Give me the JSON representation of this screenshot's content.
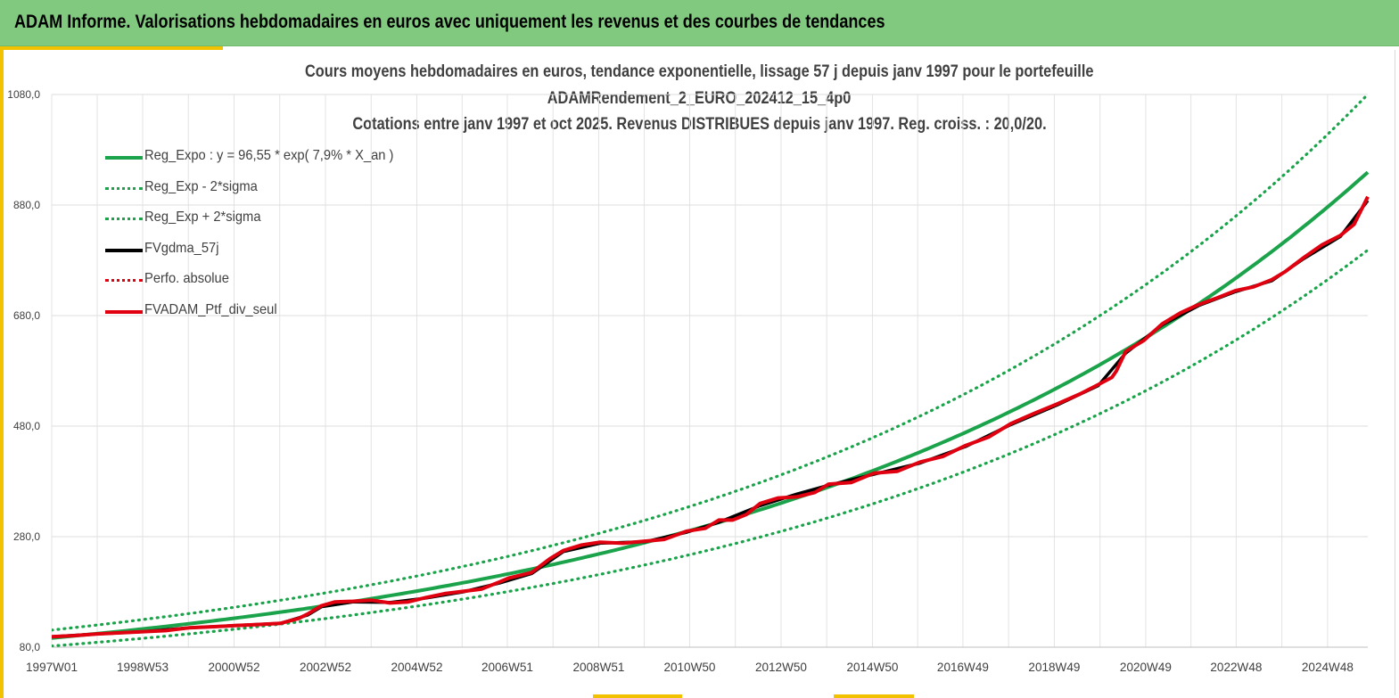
{
  "header": {
    "title": "ADAM Informe. Valorisations hebdomadaires en euros avec uniquement les revenus et des courbes de tendances"
  },
  "chart_data": {
    "type": "line",
    "title_lines": [
      "Cours moyens hebdomadaires  en euros, tendance exponentielle, lissage 57 j depuis janv 1997 pour le portefeuille",
      "ADAMRendement_2_EURO_202412_15_4p0",
      "Cotations  entre janv 1997 et oct 2025. Revenus DISTRIBUES depuis janv 1997. Reg. croiss. : 20,0/20."
    ],
    "y_ticks": [
      "80,0",
      "280,0",
      "480,0",
      "680,0",
      "880,0",
      "1080,0"
    ],
    "ylim": [
      80,
      1080
    ],
    "x_ticks": [
      {
        "label": "1997W01",
        "year": 1997.0
      },
      {
        "label": "1998W53",
        "year": 1998.99
      },
      {
        "label": "2000W52",
        "year": 2000.99
      },
      {
        "label": "2002W52",
        "year": 2002.99
      },
      {
        "label": "2004W52",
        "year": 2004.99
      },
      {
        "label": "2006W51",
        "year": 2006.97
      },
      {
        "label": "2008W51",
        "year": 2008.97
      },
      {
        "label": "2010W50",
        "year": 2010.96
      },
      {
        "label": "2012W50",
        "year": 2012.96
      },
      {
        "label": "2014W50",
        "year": 2014.96
      },
      {
        "label": "2016W49",
        "year": 2016.94
      },
      {
        "label": "2018W49",
        "year": 2018.94
      },
      {
        "label": "2020W49",
        "year": 2020.94
      },
      {
        "label": "2022W48",
        "year": 2022.92
      },
      {
        "label": "2024W48",
        "year": 2024.92
      }
    ],
    "xlim": [
      1997.0,
      2025.8
    ],
    "grid": true,
    "legend_position": "top-left",
    "regression": {
      "a": 96.55,
      "rate": 0.079,
      "sigma_factor": 0.15
    },
    "legend": [
      {
        "name": "Reg_Expo : y = 96,55 * exp( 7,9% *  X_an )",
        "color": "#1aa34a",
        "style": "solid"
      },
      {
        "name": "Reg_Exp - 2*sigma",
        "color": "#1aa34a",
        "style": "dotted"
      },
      {
        "name": "Reg_Exp + 2*sigma",
        "color": "#1aa34a",
        "style": "dotted"
      },
      {
        "name": "FVgdma_57j",
        "color": "#000000",
        "style": "solid"
      },
      {
        "name": "Perfo. absolue",
        "color": "#e0000f",
        "style": "dotted"
      },
      {
        "name": "FVADAM_Ptf_div_seul",
        "color": "#e0000f",
        "style": "solid"
      }
    ],
    "series": [
      {
        "name": "FVADAM_Ptf_div_seul",
        "x": [
          1997.0,
          1997.5,
          1998.0,
          1998.5,
          1999.0,
          1999.5,
          2000.0,
          2000.5,
          2001.0,
          2001.5,
          2002.0,
          2002.4,
          2002.6,
          2002.9,
          2003.2,
          2003.6,
          2004.0,
          2004.4,
          2004.8,
          2005.2,
          2005.6,
          2006.0,
          2006.4,
          2006.8,
          2007.0,
          2007.5,
          2007.9,
          2008.2,
          2008.6,
          2009.0,
          2009.5,
          2010.0,
          2010.4,
          2010.9,
          2011.3,
          2011.6,
          2011.9,
          2012.2,
          2012.5,
          2012.9,
          2013.3,
          2013.7,
          2014.0,
          2014.5,
          2015.0,
          2015.5,
          2016.0,
          2016.5,
          2017.0,
          2017.5,
          2018.0,
          2018.5,
          2019.0,
          2019.5,
          2019.9,
          2020.2,
          2020.3,
          2020.5,
          2020.9,
          2021.3,
          2021.7,
          2022.1,
          2022.5,
          2022.9,
          2023.3,
          2023.7,
          2024.0,
          2024.4,
          2024.8,
          2025.2,
          2025.5,
          2025.8
        ],
        "values": [
          99,
          101,
          104,
          106,
          108,
          110,
          115,
          117,
          119,
          121,
          123,
          132,
          140,
          155,
          162,
          163,
          165,
          160,
          162,
          170,
          177,
          181,
          185,
          198,
          205,
          215,
          240,
          255,
          265,
          270,
          268,
          272,
          275,
          290,
          295,
          310,
          310,
          320,
          340,
          350,
          352,
          360,
          375,
          378,
          395,
          398,
          415,
          425,
          445,
          460,
          485,
          503,
          520,
          538,
          555,
          568,
          580,
          615,
          635,
          665,
          685,
          700,
          712,
          725,
          732,
          745,
          760,
          785,
          808,
          825,
          845,
          895
        ]
      },
      {
        "name": "FVgdma_57j",
        "x": [
          1997.0,
          1998.0,
          1999.0,
          2000.0,
          2001.0,
          2002.0,
          2002.6,
          2002.9,
          2003.6,
          2004.4,
          2005.2,
          2006.0,
          2006.8,
          2007.5,
          2008.2,
          2009.0,
          2010.0,
          2010.9,
          2011.6,
          2012.5,
          2013.3,
          2014.0,
          2015.0,
          2016.0,
          2017.0,
          2018.0,
          2019.0,
          2019.9,
          2020.5,
          2021.3,
          2022.1,
          2022.9,
          2023.7,
          2024.4,
          2025.2,
          2025.8
        ],
        "values": [
          99,
          104,
          108,
          115,
          119,
          123,
          138,
          153,
          162,
          161,
          169,
          180,
          196,
          213,
          253,
          268,
          271,
          288,
          306,
          336,
          357,
          373,
          393,
          413,
          443,
          483,
          518,
          553,
          612,
          663,
          698,
          723,
          743,
          783,
          823,
          888
        ]
      }
    ]
  }
}
